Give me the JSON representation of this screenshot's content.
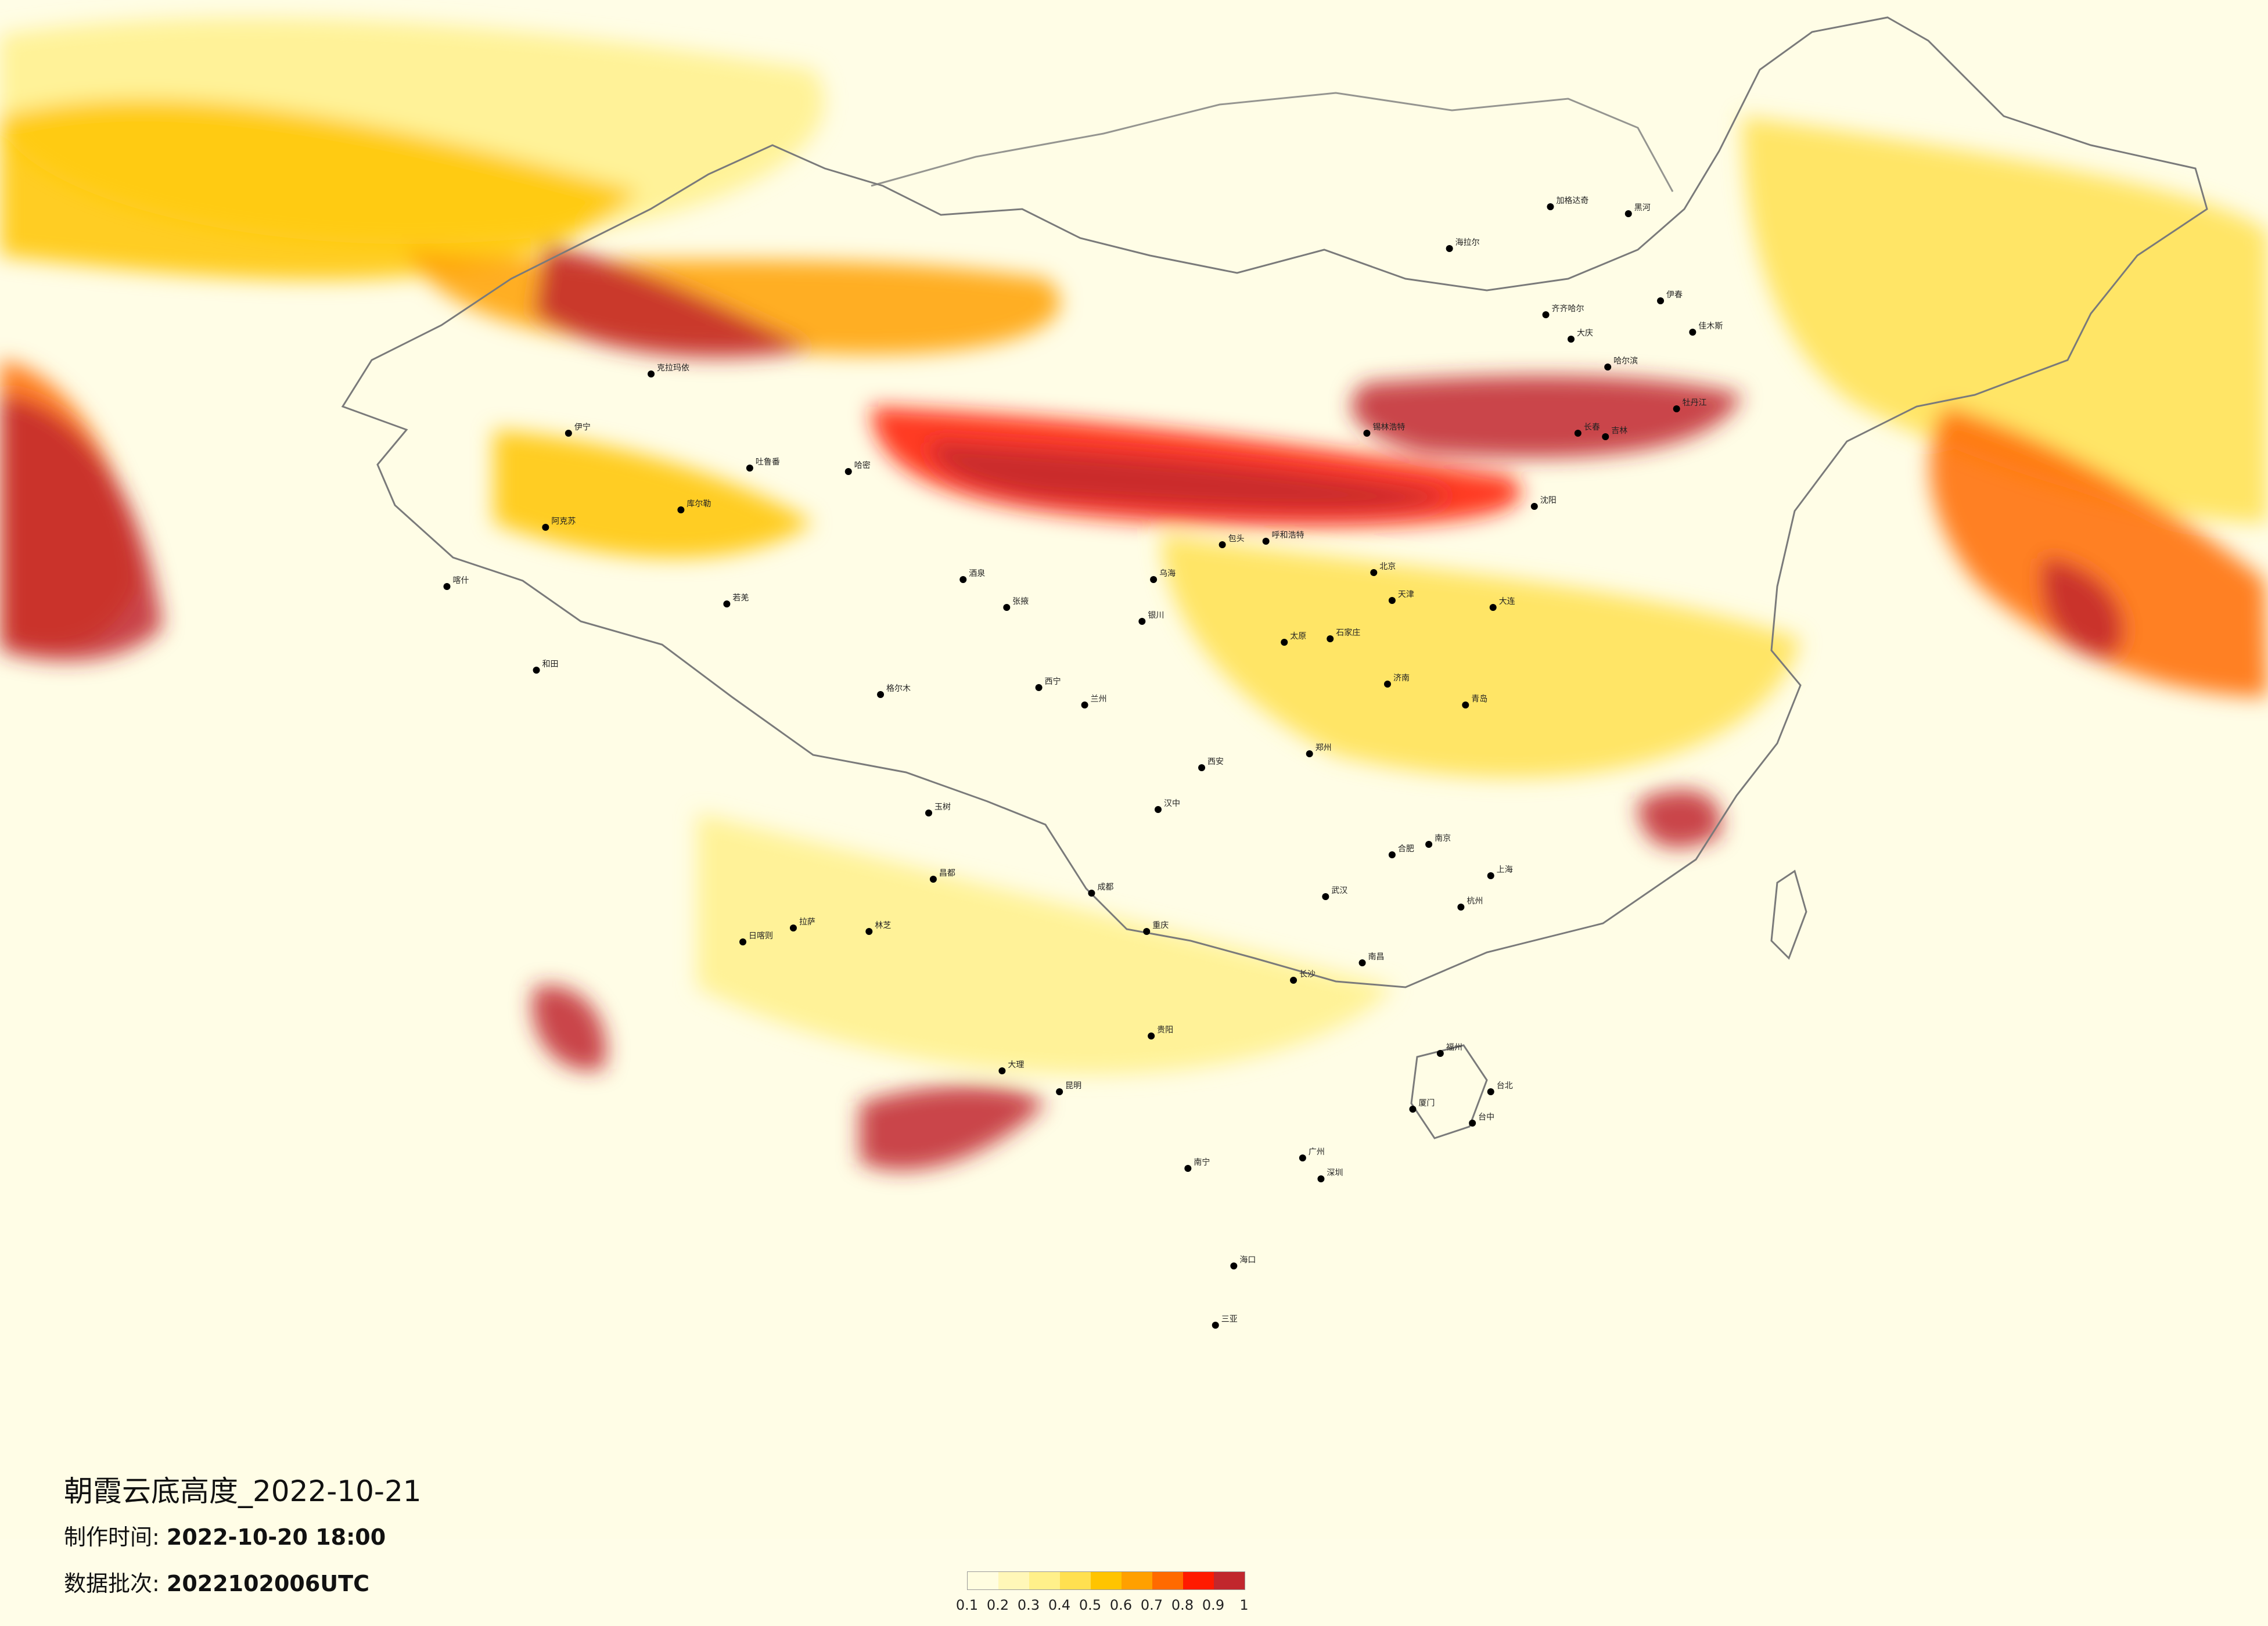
{
  "title": "朝霞云底高度_2022-10-21",
  "made_time": {
    "label": "制作时间:",
    "value": "2022-10-20 18:00"
  },
  "data_batch": {
    "label": "数据批次:",
    "value": "2022102006UTC"
  },
  "legend": {
    "colors": [
      "#fffde0",
      "#fff7b8",
      "#fff08a",
      "#ffe050",
      "#ffc400",
      "#ffa000",
      "#ff6a00",
      "#ff1a00",
      "#c1272d"
    ],
    "ticks": [
      "0.1",
      "0.2",
      "0.3",
      "0.4",
      "0.5",
      "0.6",
      "0.7",
      "0.8",
      "0.9",
      "1"
    ]
  },
  "map": {
    "region": "China and surrounding regions",
    "cities": [
      {
        "name": "克拉玛依",
        "lon": 84.9,
        "lat": 45.6
      },
      {
        "name": "伊宁",
        "lon": 81.3,
        "lat": 43.9
      },
      {
        "name": "阿克苏",
        "lon": 80.3,
        "lat": 41.2
      },
      {
        "name": "喀什",
        "lon": 76.0,
        "lat": 39.5
      },
      {
        "name": "和田",
        "lon": 79.9,
        "lat": 37.1
      },
      {
        "name": "库尔勒",
        "lon": 86.2,
        "lat": 41.7
      },
      {
        "name": "吐鲁番",
        "lon": 89.2,
        "lat": 42.9
      },
      {
        "name": "哈密",
        "lon": 93.5,
        "lat": 42.8
      },
      {
        "name": "若羌",
        "lon": 88.2,
        "lat": 39.0
      },
      {
        "name": "格尔木",
        "lon": 94.9,
        "lat": 36.4
      },
      {
        "name": "西宁",
        "lon": 101.8,
        "lat": 36.6
      },
      {
        "name": "兰州",
        "lon": 103.8,
        "lat": 36.1
      },
      {
        "name": "酒泉",
        "lon": 98.5,
        "lat": 39.7
      },
      {
        "name": "张掖",
        "lon": 100.4,
        "lat": 38.9
      },
      {
        "name": "银川",
        "lon": 106.3,
        "lat": 38.5
      },
      {
        "name": "乌海",
        "lon": 106.8,
        "lat": 39.7
      },
      {
        "name": "包头",
        "lon": 109.8,
        "lat": 40.7
      },
      {
        "name": "呼和浩特",
        "lon": 111.7,
        "lat": 40.8
      },
      {
        "name": "锡林浩特",
        "lon": 116.1,
        "lat": 43.9
      },
      {
        "name": "海拉尔",
        "lon": 119.7,
        "lat": 49.2
      },
      {
        "name": "加格达奇",
        "lon": 124.1,
        "lat": 50.4
      },
      {
        "name": "黑河",
        "lon": 127.5,
        "lat": 50.2
      },
      {
        "name": "齐齐哈尔",
        "lon": 123.9,
        "lat": 47.3
      },
      {
        "name": "大庆",
        "lon": 125.0,
        "lat": 46.6
      },
      {
        "name": "哈尔滨",
        "lon": 126.6,
        "lat": 45.8
      },
      {
        "name": "伊春",
        "lon": 128.9,
        "lat": 47.7
      },
      {
        "name": "佳木斯",
        "lon": 130.3,
        "lat": 46.8
      },
      {
        "name": "牡丹江",
        "lon": 129.6,
        "lat": 44.6
      },
      {
        "name": "长春",
        "lon": 125.3,
        "lat": 43.9
      },
      {
        "name": "吉林",
        "lon": 126.5,
        "lat": 43.8
      },
      {
        "name": "沈阳",
        "lon": 123.4,
        "lat": 41.8
      },
      {
        "name": "大连",
        "lon": 121.6,
        "lat": 38.9
      },
      {
        "name": "北京",
        "lon": 116.4,
        "lat": 39.9
      },
      {
        "name": "天津",
        "lon": 117.2,
        "lat": 39.1
      },
      {
        "name": "石家庄",
        "lon": 114.5,
        "lat": 38.0
      },
      {
        "name": "太原",
        "lon": 112.5,
        "lat": 37.9
      },
      {
        "name": "济南",
        "lon": 117.0,
        "lat": 36.7
      },
      {
        "name": "青岛",
        "lon": 120.4,
        "lat": 36.1
      },
      {
        "name": "郑州",
        "lon": 113.6,
        "lat": 34.7
      },
      {
        "name": "西安",
        "lon": 108.9,
        "lat": 34.3
      },
      {
        "name": "汉中",
        "lon": 107.0,
        "lat": 33.1
      },
      {
        "name": "南京",
        "lon": 118.8,
        "lat": 32.1
      },
      {
        "name": "合肥",
        "lon": 117.2,
        "lat": 31.8
      },
      {
        "name": "上海",
        "lon": 121.5,
        "lat": 31.2
      },
      {
        "name": "杭州",
        "lon": 120.2,
        "lat": 30.3
      },
      {
        "name": "武汉",
        "lon": 114.3,
        "lat": 30.6
      },
      {
        "name": "长沙",
        "lon": 112.9,
        "lat": 28.2
      },
      {
        "name": "南昌",
        "lon": 115.9,
        "lat": 28.7
      },
      {
        "name": "福州",
        "lon": 119.3,
        "lat": 26.1
      },
      {
        "name": "厦门",
        "lon": 118.1,
        "lat": 24.5
      },
      {
        "name": "广州",
        "lon": 113.3,
        "lat": 23.1
      },
      {
        "name": "深圳",
        "lon": 114.1,
        "lat": 22.5
      },
      {
        "name": "南宁",
        "lon": 108.3,
        "lat": 22.8
      },
      {
        "name": "海口",
        "lon": 110.3,
        "lat": 20.0
      },
      {
        "name": "三亚",
        "lon": 109.5,
        "lat": 18.3
      },
      {
        "name": "成都",
        "lon": 104.1,
        "lat": 30.7
      },
      {
        "name": "重庆",
        "lon": 106.5,
        "lat": 29.6
      },
      {
        "name": "贵阳",
        "lon": 106.7,
        "lat": 26.6
      },
      {
        "name": "昆明",
        "lon": 102.7,
        "lat": 25.0
      },
      {
        "name": "大理",
        "lon": 100.2,
        "lat": 25.6
      },
      {
        "name": "拉萨",
        "lon": 91.1,
        "lat": 29.7
      },
      {
        "name": "日喀则",
        "lon": 88.9,
        "lat": 29.3
      },
      {
        "name": "林芝",
        "lon": 94.4,
        "lat": 29.6
      },
      {
        "name": "昌都",
        "lon": 97.2,
        "lat": 31.1
      },
      {
        "name": "玉树",
        "lon": 97.0,
        "lat": 33.0
      },
      {
        "name": "台北",
        "lon": 121.5,
        "lat": 25.0
      },
      {
        "name": "台中",
        "lon": 120.7,
        "lat": 24.1
      }
    ]
  }
}
